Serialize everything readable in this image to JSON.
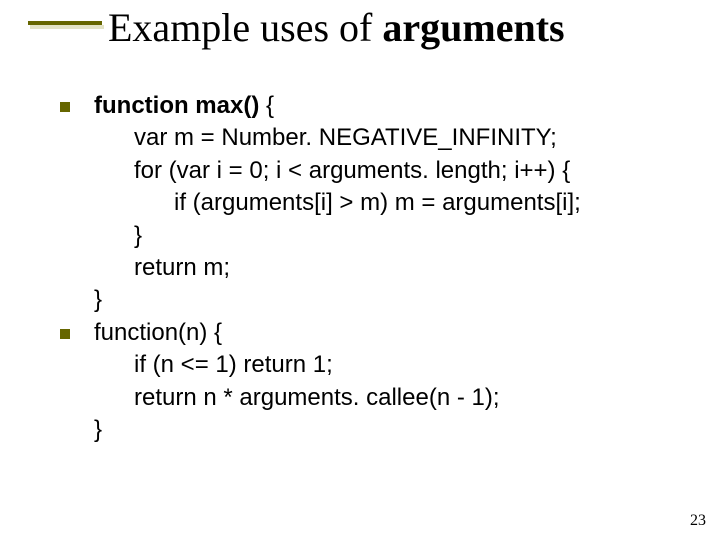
{
  "title_plain": "Example uses of ",
  "title_bold": "arguments",
  "code1": {
    "l1_a": "function max()",
    "l1_b": " {",
    "l2": "      var m = Number. NEGATIVE_INFINITY;",
    "l3": "      for (var i = 0; i < arguments. length; i++) {",
    "l4": "            if (arguments[i] > m) m = arguments[i];",
    "l5": "      }",
    "l6": "      return m;",
    "l7": "}"
  },
  "code2": {
    "l1": "function(n) {",
    "l2": "      if (n <= 1) return 1;",
    "l3": "      return n * arguments. callee(n - 1);",
    "l4": "}"
  },
  "pagenum": "23",
  "colors": {
    "rule": "#666600",
    "bg": "#ffffff",
    "text": "#000000"
  }
}
